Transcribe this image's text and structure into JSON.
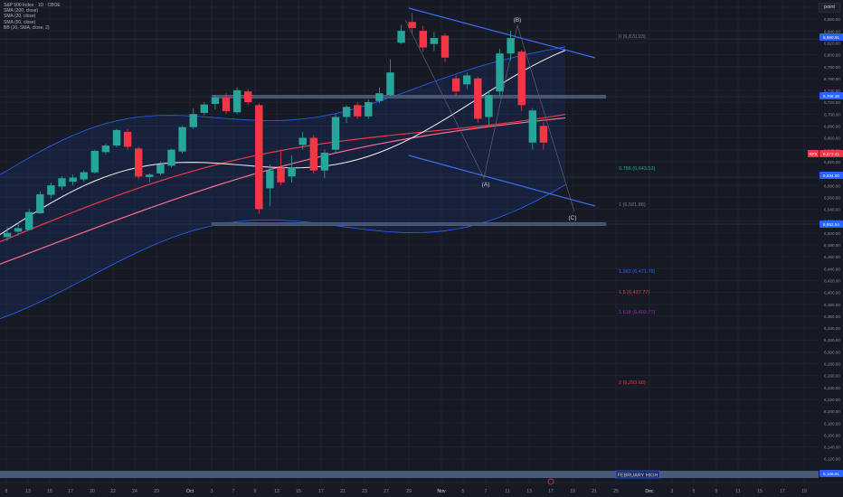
{
  "legend": {
    "title": "S&P 500 Index · 1D · CBOE",
    "lines": [
      "SMA (200, close)",
      "SMA (20, close)",
      "SMA (50, close)",
      "BB (20, SMA, close, 2)"
    ]
  },
  "toolbar": {
    "point_label": "point"
  },
  "price_axis": {
    "labels": [
      "6,880.00",
      "6,860.00",
      "6,840.00",
      "6,820.00",
      "6,800.00",
      "6,780.00",
      "6,760.00",
      "6,740.00",
      "6,720.00",
      "6,700.00",
      "6,680.00",
      "6,660.00",
      "6,640.00",
      "6,620.00",
      "6,600.00",
      "6,580.00",
      "6,560.00",
      "6,540.00",
      "6,520.00",
      "6,500.00",
      "6,480.00",
      "6,460.00",
      "6,440.00",
      "6,420.00",
      "6,400.00",
      "6,380.00",
      "6,360.00",
      "6,340.00",
      "6,320.00",
      "6,300.00",
      "6,280.00",
      "6,260.00",
      "6,240.00",
      "6,220.00",
      "6,200.00",
      "6,180.00",
      "6,160.00",
      "6,140.00",
      "6,120.00"
    ],
    "badges": [
      {
        "text": "6,860.91",
        "color": "#2962ff"
      },
      {
        "text": "6,766.38",
        "color": "#2962ff"
      },
      {
        "text": "6,672.41",
        "color": "#f23645",
        "prefix": "SPX"
      },
      {
        "text": "6,634.00",
        "color": "#2962ff"
      },
      {
        "text": "6,552.54",
        "color": "#2962ff"
      },
      {
        "text": "6,146.61",
        "color": "#2962ff"
      }
    ]
  },
  "time_axis": {
    "labels": [
      "8",
      "13",
      "15",
      "17",
      "20",
      "22",
      "24",
      "29",
      "Oct",
      "3",
      "7",
      "9",
      "13",
      "15",
      "17",
      "21",
      "23",
      "27",
      "29",
      "Nov",
      "5",
      "7",
      "11",
      "13",
      "17",
      "19",
      "21",
      "25",
      "Dec",
      "3",
      "5",
      "9",
      "11",
      "15",
      "17",
      "19"
    ]
  },
  "fib_levels": [
    {
      "text": "0 (6,870.03)",
      "color": "#787b86"
    },
    {
      "text": "0.786 (6,643.53)",
      "color": "#26a69a"
    },
    {
      "text": "1 (6,581.86)",
      "color": "#787b86"
    },
    {
      "text": "1.382 (6,471.78)",
      "color": "#2962ff"
    },
    {
      "text": "1.5 (6,437.77)",
      "color": "#f23645"
    },
    {
      "text": "1.618 (6,403.77)",
      "color": "#9c27b0"
    },
    {
      "text": "2 (6,293.68)",
      "color": "#f23645"
    }
  ],
  "wave_labels": [
    "(B)",
    "(A)",
    "(C)"
  ],
  "zone_label": "FEBRUARY HIGH",
  "colors": {
    "up": "#26a69a",
    "down": "#f23645",
    "band": "#2962ff",
    "sma20": "#f5f5f0",
    "sma50": "#f23645",
    "sma200": "#ff6b8f"
  },
  "candles": [
    {
      "o": 6513,
      "h": 6530,
      "l": 6506,
      "c": 6520
    },
    {
      "o": 6522,
      "h": 6538,
      "l": 6515,
      "c": 6528
    },
    {
      "o": 6525,
      "h": 6560,
      "l": 6524,
      "c": 6555
    },
    {
      "o": 6553,
      "h": 6590,
      "l": 6552,
      "c": 6585
    },
    {
      "o": 6584,
      "h": 6605,
      "l": 6578,
      "c": 6600
    },
    {
      "o": 6598,
      "h": 6615,
      "l": 6592,
      "c": 6612
    },
    {
      "o": 6606,
      "h": 6618,
      "l": 6600,
      "c": 6613
    },
    {
      "o": 6610,
      "h": 6625,
      "l": 6606,
      "c": 6622
    },
    {
      "o": 6622,
      "h": 6660,
      "l": 6620,
      "c": 6658
    },
    {
      "o": 6656,
      "h": 6670,
      "l": 6652,
      "c": 6667
    },
    {
      "o": 6667,
      "h": 6695,
      "l": 6664,
      "c": 6693
    },
    {
      "o": 6690,
      "h": 6695,
      "l": 6660,
      "c": 6665
    },
    {
      "o": 6662,
      "h": 6665,
      "l": 6610,
      "c": 6615
    },
    {
      "o": 6614,
      "h": 6620,
      "l": 6605,
      "c": 6618
    },
    {
      "o": 6620,
      "h": 6640,
      "l": 6617,
      "c": 6635
    },
    {
      "o": 6633,
      "h": 6662,
      "l": 6630,
      "c": 6660
    },
    {
      "o": 6657,
      "h": 6700,
      "l": 6654,
      "c": 6698
    },
    {
      "o": 6698,
      "h": 6730,
      "l": 6695,
      "c": 6720
    },
    {
      "o": 6722,
      "h": 6740,
      "l": 6718,
      "c": 6736
    },
    {
      "o": 6737,
      "h": 6752,
      "l": 6728,
      "c": 6748
    },
    {
      "o": 6748,
      "h": 6755,
      "l": 6720,
      "c": 6725
    },
    {
      "o": 6723,
      "h": 6765,
      "l": 6720,
      "c": 6760
    },
    {
      "o": 6758,
      "h": 6762,
      "l": 6735,
      "c": 6740
    },
    {
      "o": 6735,
      "h": 6738,
      "l": 6552,
      "c": 6560
    },
    {
      "o": 6595,
      "h": 6635,
      "l": 6565,
      "c": 6625
    },
    {
      "o": 6630,
      "h": 6660,
      "l": 6600,
      "c": 6605
    },
    {
      "o": 6615,
      "h": 6650,
      "l": 6605,
      "c": 6630
    },
    {
      "o": 6668,
      "h": 6690,
      "l": 6660,
      "c": 6680
    },
    {
      "o": 6680,
      "h": 6685,
      "l": 6620,
      "c": 6625
    },
    {
      "o": 6625,
      "h": 6660,
      "l": 6612,
      "c": 6655
    },
    {
      "o": 6660,
      "h": 6720,
      "l": 6655,
      "c": 6715
    },
    {
      "o": 6715,
      "h": 6735,
      "l": 6705,
      "c": 6732
    },
    {
      "o": 6735,
      "h": 6740,
      "l": 6712,
      "c": 6716
    },
    {
      "o": 6716,
      "h": 6745,
      "l": 6712,
      "c": 6740
    },
    {
      "o": 6742,
      "h": 6765,
      "l": 6738,
      "c": 6755
    },
    {
      "o": 6752,
      "h": 6812,
      "l": 6750,
      "c": 6790
    },
    {
      "o": 6840,
      "h": 6870,
      "l": 6838,
      "c": 6860
    },
    {
      "o": 6875,
      "h": 6890,
      "l": 6855,
      "c": 6865
    },
    {
      "o": 6860,
      "h": 6868,
      "l": 6825,
      "c": 6832
    },
    {
      "o": 6838,
      "h": 6858,
      "l": 6826,
      "c": 6848
    },
    {
      "o": 6852,
      "h": 6856,
      "l": 6808,
      "c": 6815
    },
    {
      "o": 6780,
      "h": 6785,
      "l": 6750,
      "c": 6758
    },
    {
      "o": 6770,
      "h": 6790,
      "l": 6762,
      "c": 6785
    },
    {
      "o": 6780,
      "h": 6782,
      "l": 6705,
      "c": 6712
    },
    {
      "o": 6715,
      "h": 6760,
      "l": 6700,
      "c": 6752
    },
    {
      "o": 6758,
      "h": 6830,
      "l": 6750,
      "c": 6822
    },
    {
      "o": 6822,
      "h": 6860,
      "l": 6810,
      "c": 6848
    },
    {
      "o": 6825,
      "h": 6828,
      "l": 6725,
      "c": 6735
    },
    {
      "o": 6672,
      "h": 6730,
      "l": 6660,
      "c": 6726
    },
    {
      "o": 6700,
      "h": 6706,
      "l": 6660,
      "c": 6672
    }
  ]
}
